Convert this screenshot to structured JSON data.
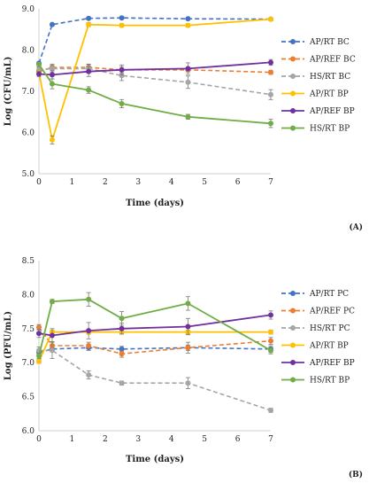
{
  "chart_data": [
    {
      "type": "line",
      "panel": "(A)",
      "xlabel": "Time (days)",
      "ylabel": "Log (CFU/mL)",
      "xlim": [
        0,
        7
      ],
      "ylim": [
        5.0,
        9.0
      ],
      "xticks": [
        "0",
        "1",
        "2",
        "3",
        "4",
        "5",
        "6",
        "7"
      ],
      "yticks": [
        "5.0",
        "6.0",
        "7.0",
        "8.0",
        "9.0"
      ],
      "x": [
        0,
        0.4,
        1.5,
        2.5,
        4.5,
        7
      ],
      "legend_position": "right",
      "grid": false,
      "series": [
        {
          "name": "AP/RT BC",
          "color": "#4472C4",
          "dashed": true,
          "values": [
            7.68,
            8.62,
            8.77,
            8.78,
            8.76,
            8.75
          ],
          "err": [
            0.03,
            0.03,
            0.03,
            0.03,
            0.03,
            0.03
          ]
        },
        {
          "name": "AP/REF BC",
          "color": "#ED7D31",
          "dashed": true,
          "values": [
            7.48,
            7.58,
            7.58,
            7.52,
            7.52,
            7.46
          ],
          "err": [
            0.05,
            0.08,
            0.08,
            0.08,
            0.05,
            0.05
          ]
        },
        {
          "name": "HS/RT BC",
          "color": "#A5A5A5",
          "dashed": true,
          "values": [
            7.52,
            7.55,
            7.55,
            7.38,
            7.22,
            6.92
          ],
          "err": [
            0.06,
            0.08,
            0.1,
            0.12,
            0.15,
            0.12
          ]
        },
        {
          "name": "AP/RT BP",
          "color": "#FFC000",
          "dashed": false,
          "values": [
            7.45,
            5.82,
            8.62,
            8.6,
            8.6,
            8.75
          ],
          "err": [
            0.05,
            0.1,
            0.05,
            0.04,
            0.04,
            0.04
          ]
        },
        {
          "name": "AP/REF BP",
          "color": "#7030A0",
          "dashed": false,
          "values": [
            7.42,
            7.4,
            7.48,
            7.52,
            7.55,
            7.7
          ],
          "err": [
            0.06,
            0.1,
            0.12,
            0.12,
            0.14,
            0.07
          ]
        },
        {
          "name": "HS/RT BP",
          "color": "#70AD47",
          "dashed": false,
          "values": [
            7.65,
            7.18,
            7.03,
            6.7,
            6.38,
            6.22
          ],
          "err": [
            0.05,
            0.12,
            0.08,
            0.1,
            0.06,
            0.1
          ]
        }
      ]
    },
    {
      "type": "line",
      "panel": "(B)",
      "xlabel": "Time (days)",
      "ylabel": "Log (PFU/mL)",
      "xlim": [
        0,
        7
      ],
      "ylim": [
        6.0,
        8.5
      ],
      "xticks": [
        "0",
        "1",
        "2",
        "3",
        "4",
        "5",
        "6",
        "7"
      ],
      "yticks": [
        "6.0",
        "6.5",
        "7.0",
        "7.5",
        "8.0",
        "8.5"
      ],
      "x": [
        0,
        0.4,
        1.5,
        2.5,
        4.5,
        7
      ],
      "legend_position": "right",
      "grid": false,
      "series": [
        {
          "name": "AP/RT PC",
          "color": "#4472C4",
          "dashed": true,
          "values": [
            7.15,
            7.2,
            7.22,
            7.2,
            7.22,
            7.2
          ],
          "err": [
            0.03,
            0.04,
            0.04,
            0.04,
            0.04,
            0.05
          ]
        },
        {
          "name": "AP/REF PC",
          "color": "#ED7D31",
          "dashed": true,
          "values": [
            7.52,
            7.25,
            7.25,
            7.13,
            7.22,
            7.32
          ],
          "err": [
            0.04,
            0.06,
            0.05,
            0.05,
            0.08,
            0.05
          ]
        },
        {
          "name": "HS/RT PC",
          "color": "#A5A5A5",
          "dashed": true,
          "values": [
            7.18,
            7.18,
            6.82,
            6.7,
            6.7,
            6.3
          ],
          "err": [
            0.05,
            0.12,
            0.06,
            0.03,
            0.08,
            0.03
          ]
        },
        {
          "name": "AP/RT BP",
          "color": "#FFC000",
          "dashed": false,
          "values": [
            7.02,
            7.45,
            7.45,
            7.45,
            7.45,
            7.45
          ],
          "err": [
            0.03,
            0.03,
            0.03,
            0.03,
            0.03,
            0.03
          ]
        },
        {
          "name": "AP/REF BP",
          "color": "#7030A0",
          "dashed": false,
          "values": [
            7.43,
            7.4,
            7.47,
            7.5,
            7.53,
            7.7
          ],
          "err": [
            0.06,
            0.1,
            0.12,
            0.08,
            0.12,
            0.06
          ]
        },
        {
          "name": "HS/RT BP",
          "color": "#70AD47",
          "dashed": false,
          "values": [
            7.1,
            7.9,
            7.93,
            7.65,
            7.87,
            7.18
          ],
          "err": [
            0.04,
            0.03,
            0.1,
            0.1,
            0.1,
            0.05
          ]
        }
      ]
    }
  ]
}
